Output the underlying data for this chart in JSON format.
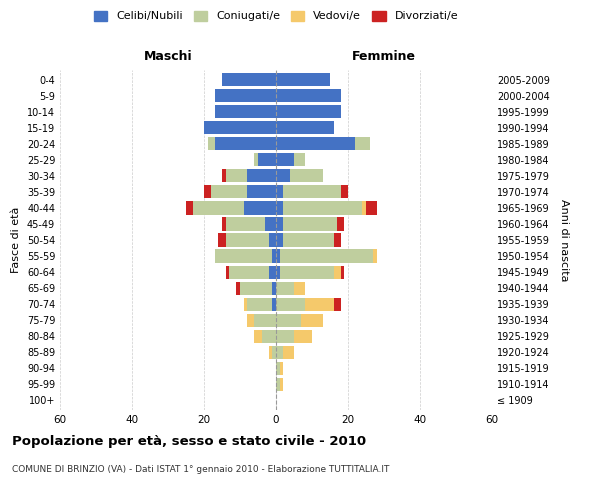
{
  "age_groups": [
    "100+",
    "95-99",
    "90-94",
    "85-89",
    "80-84",
    "75-79",
    "70-74",
    "65-69",
    "60-64",
    "55-59",
    "50-54",
    "45-49",
    "40-44",
    "35-39",
    "30-34",
    "25-29",
    "20-24",
    "15-19",
    "10-14",
    "5-9",
    "0-4"
  ],
  "birth_years": [
    "≤ 1909",
    "1910-1914",
    "1915-1919",
    "1920-1924",
    "1925-1929",
    "1930-1934",
    "1935-1939",
    "1940-1944",
    "1945-1949",
    "1950-1954",
    "1955-1959",
    "1960-1964",
    "1965-1969",
    "1970-1974",
    "1975-1979",
    "1980-1984",
    "1985-1989",
    "1990-1994",
    "1995-1999",
    "2000-2004",
    "2005-2009"
  ],
  "male": {
    "celibi": [
      0,
      0,
      0,
      0,
      0,
      0,
      1,
      1,
      2,
      1,
      2,
      3,
      9,
      8,
      8,
      5,
      17,
      20,
      17,
      17,
      15
    ],
    "coniugati": [
      0,
      0,
      0,
      1,
      4,
      6,
      7,
      9,
      11,
      16,
      12,
      11,
      14,
      10,
      6,
      1,
      2,
      0,
      0,
      0,
      0
    ],
    "vedovi": [
      0,
      0,
      0,
      1,
      2,
      2,
      1,
      0,
      0,
      0,
      0,
      0,
      0,
      0,
      0,
      0,
      0,
      0,
      0,
      0,
      0
    ],
    "divorziati": [
      0,
      0,
      0,
      0,
      0,
      0,
      0,
      1,
      1,
      0,
      2,
      1,
      2,
      2,
      1,
      0,
      0,
      0,
      0,
      0,
      0
    ]
  },
  "female": {
    "nubili": [
      0,
      0,
      0,
      0,
      0,
      0,
      0,
      0,
      1,
      1,
      2,
      2,
      2,
      2,
      4,
      5,
      22,
      16,
      18,
      18,
      15
    ],
    "coniugate": [
      0,
      1,
      1,
      2,
      5,
      7,
      8,
      5,
      15,
      26,
      14,
      15,
      22,
      16,
      9,
      3,
      4,
      0,
      0,
      0,
      0
    ],
    "vedove": [
      0,
      1,
      1,
      3,
      5,
      6,
      8,
      3,
      2,
      1,
      0,
      0,
      1,
      0,
      0,
      0,
      0,
      0,
      0,
      0,
      0
    ],
    "divorziate": [
      0,
      0,
      0,
      0,
      0,
      0,
      2,
      0,
      1,
      0,
      2,
      2,
      3,
      2,
      0,
      0,
      0,
      0,
      0,
      0,
      0
    ]
  },
  "colors": {
    "celibi": "#4472C4",
    "coniugati": "#BFCE9E",
    "vedovi": "#F5C96B",
    "divorziati": "#CC2222"
  },
  "title": "Popolazione per età, sesso e stato civile - 2010",
  "subtitle": "COMUNE DI BRINZIO (VA) - Dati ISTAT 1° gennaio 2010 - Elaborazione TUTTITALIA.IT",
  "xlabel_left": "Maschi",
  "xlabel_right": "Femmine",
  "ylabel_left": "Fasce di età",
  "ylabel_right": "Anni di nascita",
  "xlim": 60,
  "bg_color": "#FFFFFF",
  "grid_color": "#CCCCCC"
}
